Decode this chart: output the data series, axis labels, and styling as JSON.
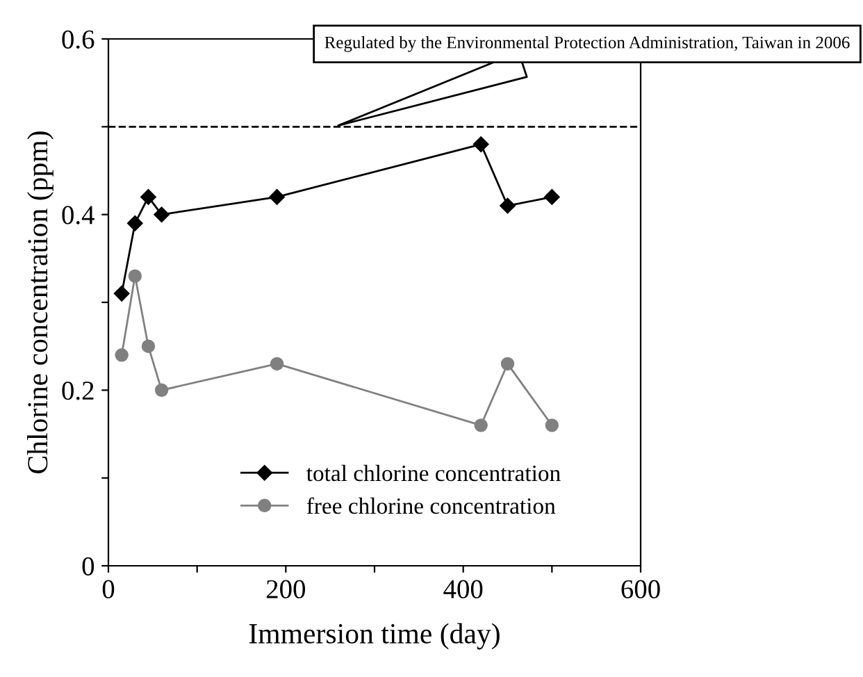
{
  "chart_data": {
    "type": "line",
    "xlabel": "Immersion time (day)",
    "ylabel": "Chlorine concentration (ppm)",
    "x": [
      15,
      30,
      45,
      60,
      190,
      420,
      450,
      500
    ],
    "series": [
      {
        "name": "total chlorine concentration",
        "color": "#000000",
        "marker": "diamond",
        "values": [
          0.31,
          0.39,
          0.42,
          0.4,
          0.42,
          0.48,
          0.41,
          0.42
        ]
      },
      {
        "name": "free chlorine concentration",
        "color": "#808080",
        "marker": "circle",
        "values": [
          0.24,
          0.33,
          0.25,
          0.2,
          0.23,
          0.16,
          0.23,
          0.16
        ]
      }
    ],
    "xlim": [
      0,
      600
    ],
    "ylim": [
      0,
      0.6
    ],
    "xticks": [
      0,
      {
        "value": 100,
        "label": null
      },
      200,
      {
        "value": 300,
        "label": null
      },
      400,
      {
        "value": 500,
        "label": null
      },
      600
    ],
    "yticks": [
      0,
      {
        "value": 0.1,
        "label": null
      },
      0.2,
      {
        "value": 0.3,
        "label": null
      },
      0.4,
      {
        "value": 0.5,
        "label": null
      },
      0.6
    ],
    "ref_lines": [
      {
        "axis": "y",
        "value": 0.5,
        "line_style": "dashed",
        "color": "#000000"
      }
    ],
    "annotations": [
      {
        "text": "Regulated by the Environmental Protection Administration, Taiwan in 2006",
        "x": 255,
        "y": 0.5
      }
    ],
    "legend": "bottom",
    "grid": false,
    "line_style": "solid"
  }
}
